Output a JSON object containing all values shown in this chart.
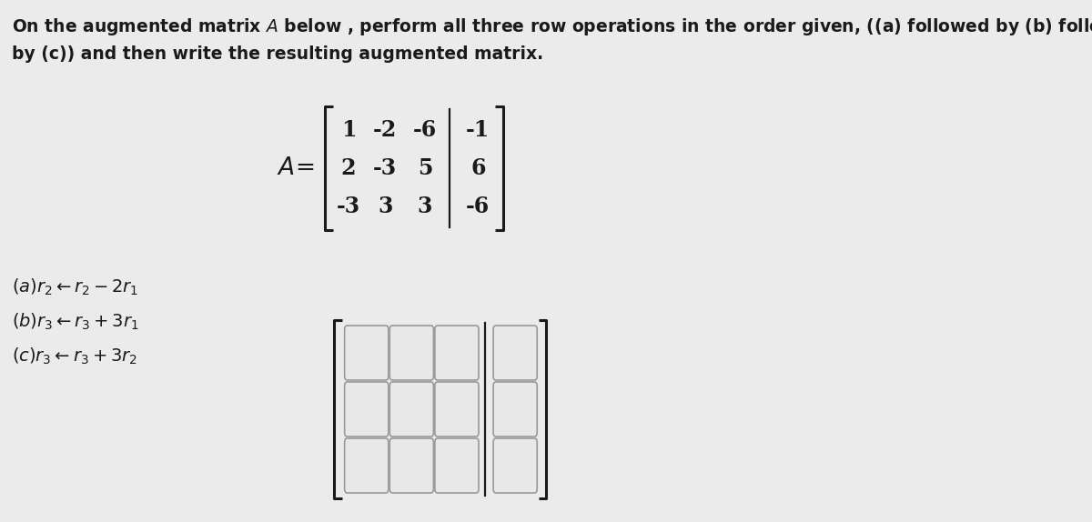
{
  "bg_color": "#ebebeb",
  "title_line1": "On the augmented matrix $\\mathit{A}$ below , perform all three row operations in the order given, ((a) followed by (b) followed",
  "title_line2": "by (c)) and then write the resulting augmented matrix.",
  "matrix": [
    [
      1,
      -2,
      -6,
      -1
    ],
    [
      2,
      -3,
      5,
      6
    ],
    [
      -3,
      3,
      3,
      -6
    ]
  ],
  "ops": [
    "$(a)r_2 \\leftarrow r_2 - 2r_1$",
    "$(b)r_3 \\leftarrow r_3 + 3r_1$",
    "$(c)r_3 \\leftarrow r_3 + 3r_2$"
  ],
  "text_color": "#1a1a1a",
  "box_facecolor": "#e8e8e8",
  "box_edgecolor": "#999999",
  "title_fontsize": 13.5,
  "matrix_fontsize": 17,
  "ops_fontsize": 14,
  "bracket_lw": 2.2,
  "divider_lw": 1.6
}
